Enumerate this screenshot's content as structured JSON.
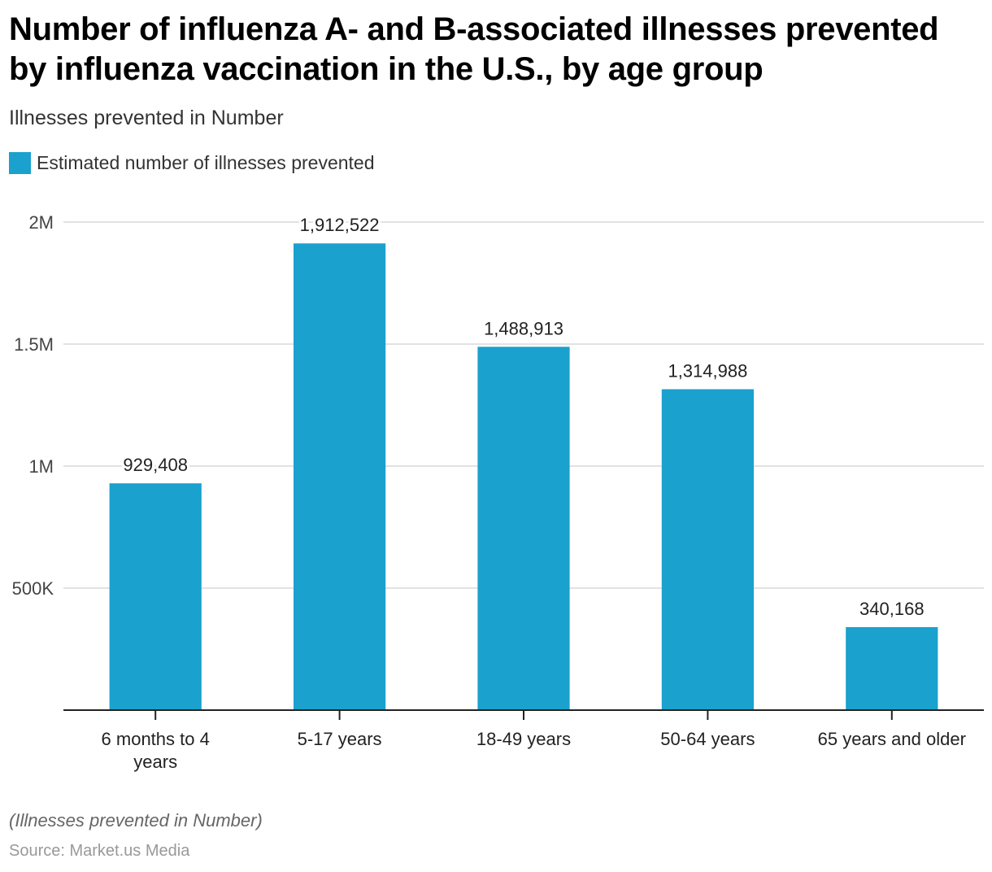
{
  "chart_data": {
    "type": "bar",
    "title": "Number of influenza A- and B-associated illnesses prevented by influenza vaccination in the U.S., by age group",
    "subtitle": "Illnesses prevented in Number",
    "legend": {
      "position": "top-left",
      "entries": [
        "Estimated number of illnesses prevented"
      ]
    },
    "categories": [
      "6 months to 4 years",
      "5-17 years",
      "18-49 years",
      "50-64 years",
      "65 years and older"
    ],
    "category_lines": [
      [
        "6 months to 4",
        "years"
      ],
      [
        "5-17 years"
      ],
      [
        "18-49 years"
      ],
      [
        "50-64 years"
      ],
      [
        "65 years and older"
      ]
    ],
    "series": [
      {
        "name": "Estimated number of illnesses prevented",
        "values": [
          929408,
          1912522,
          1488913,
          1314988,
          340168
        ],
        "labels": [
          "929,408",
          "1,912,522",
          "1,488,913",
          "1,314,988",
          "340,168"
        ],
        "color": "#1aa1cd"
      }
    ],
    "xlabel": "",
    "ylabel": "",
    "ylim": [
      0,
      2000000
    ],
    "yticks": [
      500000,
      1000000,
      1500000,
      2000000
    ],
    "ytick_labels": [
      "500K",
      "1M",
      "1.5M",
      "2M"
    ],
    "grid": true,
    "footnote": "(Illnesses prevented in Number)",
    "source": "Source: Market.us Media"
  }
}
